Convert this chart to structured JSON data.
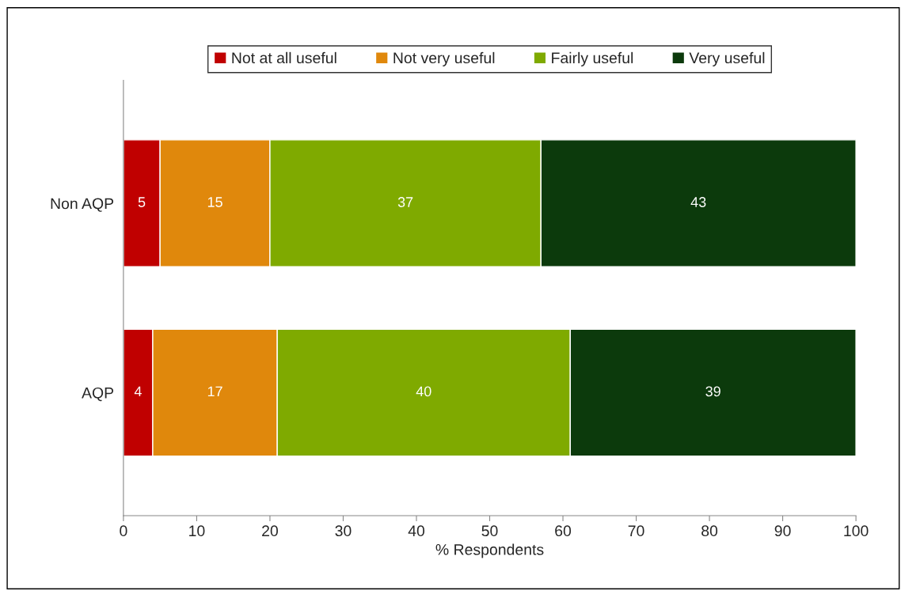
{
  "chart_data": {
    "type": "bar",
    "orientation": "horizontal",
    "stacked": true,
    "categories": [
      "Non AQP",
      "AQP"
    ],
    "series": [
      {
        "name": "Not at all useful",
        "color": "#c00000",
        "values": [
          5,
          4
        ]
      },
      {
        "name": "Not very useful",
        "color": "#e0880c",
        "values": [
          15,
          17
        ]
      },
      {
        "name": "Fairly useful",
        "color": "#7faa00",
        "values": [
          37,
          40
        ]
      },
      {
        "name": "Very useful",
        "color": "#0c3a0c",
        "values": [
          43,
          39
        ]
      }
    ],
    "xlim": [
      0,
      100
    ],
    "xticks": [
      0,
      10,
      20,
      30,
      40,
      50,
      60,
      70,
      80,
      90,
      100
    ],
    "xlabel": "% Respondents",
    "data_labels": true,
    "legend": "top",
    "grid": false
  }
}
